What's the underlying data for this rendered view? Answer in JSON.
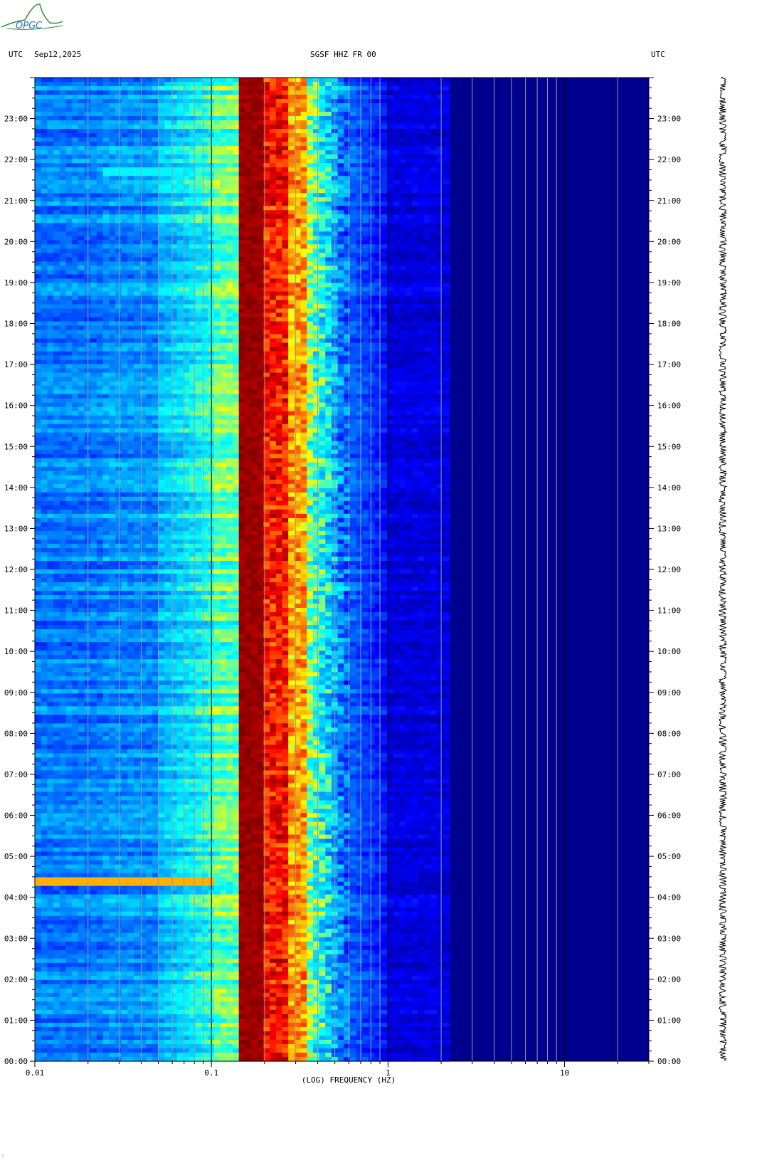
{
  "header": {
    "left_tz": "UTC",
    "date": "Sep12,2025",
    "station": "SGSF HHZ FR 00",
    "right_tz": "UTC"
  },
  "logo": {
    "text": "OPGC",
    "icon": "opgc-logo-icon",
    "color": "#2a8c3a"
  },
  "chart_data": {
    "type": "heatmap",
    "title": "",
    "xlabel": "(LOG) FREQUENCY (HZ)",
    "ylabel": "",
    "x_scale": "log",
    "xlim": [
      0.01,
      30
    ],
    "x_ticks": [
      0.01,
      0.1,
      1,
      10
    ],
    "x_tick_labels": [
      "0.01",
      "0.1",
      "1",
      "10"
    ],
    "y_ticks_hours": [
      0,
      1,
      2,
      3,
      4,
      5,
      6,
      7,
      8,
      9,
      10,
      11,
      12,
      13,
      14,
      15,
      16,
      17,
      18,
      19,
      20,
      21,
      22,
      23
    ],
    "y_tick_labels": [
      "00:00",
      "01:00",
      "02:00",
      "03:00",
      "04:00",
      "05:00",
      "06:00",
      "07:00",
      "08:00",
      "09:00",
      "10:00",
      "11:00",
      "12:00",
      "13:00",
      "14:00",
      "15:00",
      "16:00",
      "17:00",
      "18:00",
      "19:00",
      "20:00",
      "21:00",
      "22:00",
      "23:00"
    ],
    "ylim_hours": [
      0,
      24
    ],
    "colormap": [
      "#00008f",
      "#0000ff",
      "#0080ff",
      "#00ffff",
      "#ffff00",
      "#ff8000",
      "#ff0000",
      "#800000"
    ],
    "grid": true,
    "microseism_peak_hz": [
      0.14,
      0.2
    ],
    "noise_ridge_hz": [
      0.2,
      0.5
    ],
    "events": [
      {
        "hour": 4.4,
        "fmin": 0.01,
        "fmax": 0.1,
        "level": "high"
      },
      {
        "hour": 21.7,
        "fmin": 0.025,
        "fmax": 0.07,
        "level": "moderate"
      },
      {
        "hour": 18.8,
        "fmin": 0.05,
        "fmax": 0.08,
        "level": "moderate"
      }
    ]
  }
}
